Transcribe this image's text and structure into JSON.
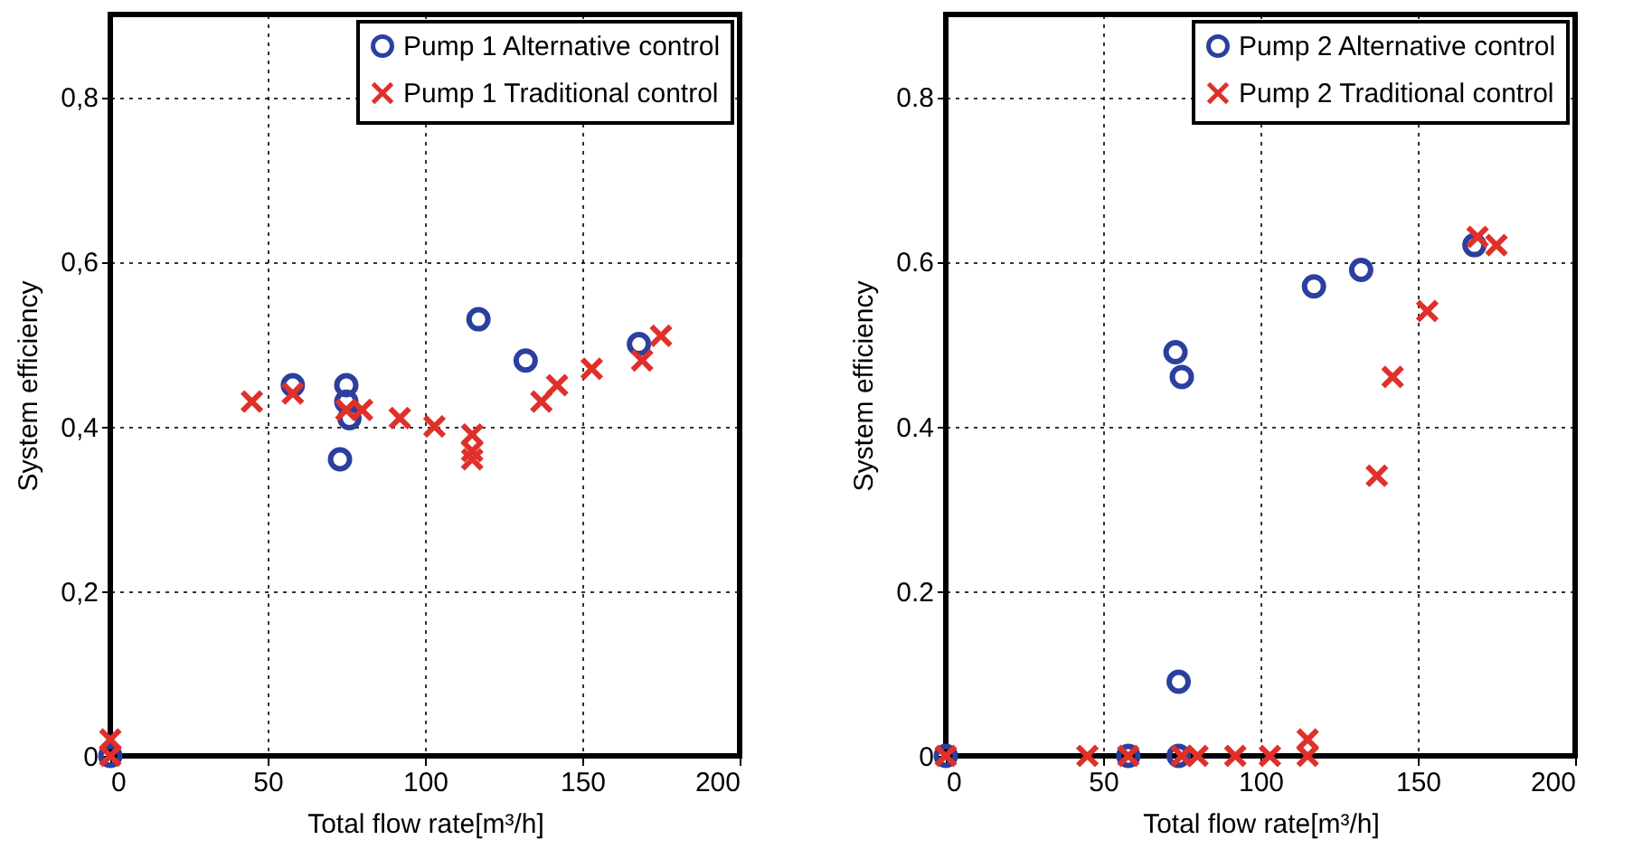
{
  "chart_data": [
    {
      "type": "scatter",
      "xlabel": "Total flow rate[m³/h]",
      "ylabel": "System efficiency",
      "xlim": [
        0,
        200
      ],
      "ylim": [
        0,
        0.9
      ],
      "xticks": [
        0,
        50,
        100,
        150,
        200
      ],
      "yticks": [
        0,
        {
          "value": 0.2,
          "label": "0,2"
        },
        {
          "value": 0.4,
          "label": "0,4"
        },
        {
          "value": 0.6,
          "label": "0,6"
        },
        {
          "value": 0.8,
          "label": "0,8"
        }
      ],
      "grid": true,
      "legend": "top right",
      "series": [
        {
          "name": "Pump 1 Alternative control",
          "color": "#2b3f9e",
          "marker": "circle",
          "x": [
            0,
            58,
            75,
            75,
            76,
            73,
            117,
            132,
            168
          ],
          "values": [
            0,
            0.45,
            0.45,
            0.43,
            0.41,
            0.36,
            0.53,
            0.48,
            0.5
          ]
        },
        {
          "name": "Pump 1 Traditional control",
          "color": "#e0302a",
          "marker": "cross",
          "x": [
            0,
            0,
            45,
            58,
            75,
            80,
            92,
            103,
            115,
            115,
            115,
            137,
            142,
            153,
            169,
            175
          ],
          "values": [
            0.02,
            0,
            0.43,
            0.44,
            0.42,
            0.42,
            0.41,
            0.4,
            0.39,
            0.37,
            0.36,
            0.43,
            0.45,
            0.47,
            0.48,
            0.51
          ]
        }
      ]
    },
    {
      "type": "scatter",
      "xlabel": "Total flow rate[m³/h]",
      "ylabel": "System efficiency",
      "xlim": [
        0,
        200
      ],
      "ylim": [
        0,
        0.9
      ],
      "xticks": [
        0,
        50,
        100,
        150,
        200
      ],
      "yticks": [
        0,
        0.2,
        0.4,
        0.6,
        0.8
      ],
      "grid": true,
      "legend": "top right",
      "series": [
        {
          "name": "Pump 2 Alternative control",
          "color": "#2b3f9e",
          "marker": "circle",
          "x": [
            0,
            58,
            73,
            75,
            74,
            74,
            117,
            132,
            168
          ],
          "values": [
            0,
            0,
            0.49,
            0.46,
            0.09,
            0,
            0.57,
            0.59,
            0.62
          ]
        },
        {
          "name": "Pump 2 Traditional control",
          "color": "#e0302a",
          "marker": "cross",
          "x": [
            0,
            45,
            58,
            75,
            80,
            92,
            103,
            115,
            115,
            137,
            142,
            153,
            169,
            175
          ],
          "values": [
            0,
            0,
            0,
            0,
            0,
            0,
            0,
            0.02,
            0,
            0.34,
            0.46,
            0.54,
            0.63,
            0.62
          ]
        }
      ]
    }
  ]
}
